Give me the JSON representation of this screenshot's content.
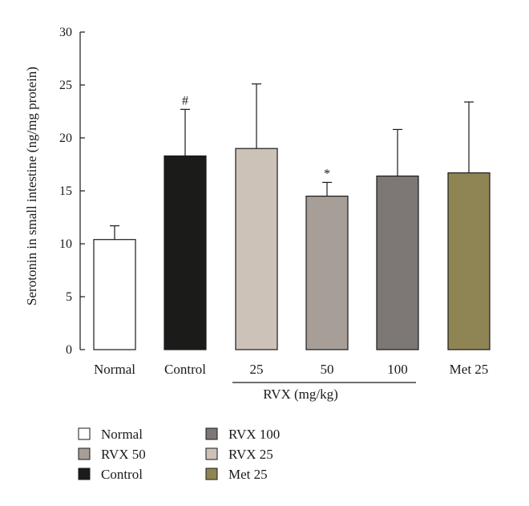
{
  "chart_data": {
    "type": "bar",
    "ylabel": "Serotonin in small intestine (ng/mg protein)",
    "ylim": [
      0,
      30
    ],
    "yticks": [
      0,
      5,
      10,
      15,
      20,
      25,
      30
    ],
    "grid": false,
    "group_label": "RVX (mg/kg)",
    "bars": [
      {
        "label": "Normal",
        "value": 10.4,
        "error": 1.3,
        "color": "#ffffff",
        "mark": ""
      },
      {
        "label": "Control",
        "value": 18.3,
        "error": 4.4,
        "color": "#1b1b19",
        "mark": "#"
      },
      {
        "label": "25",
        "value": 19.0,
        "error": 6.1,
        "color": "#cdc2b8",
        "mark": ""
      },
      {
        "label": "50",
        "value": 14.5,
        "error": 1.3,
        "color": "#a79f97",
        "mark": "*"
      },
      {
        "label": "100",
        "value": 16.4,
        "error": 4.4,
        "color": "#7d7775",
        "mark": ""
      },
      {
        "label": "Met 25",
        "value": 16.7,
        "error": 6.7,
        "color": "#8f8554",
        "mark": ""
      }
    ],
    "legend": {
      "placement": "bottom",
      "columns": [
        [
          {
            "label": "Normal",
            "color": "#ffffff"
          },
          {
            "label": "RVX 50",
            "color": "#a79f97"
          },
          {
            "label": "Control",
            "color": "#1b1b19"
          }
        ],
        [
          {
            "label": "RVX 100",
            "color": "#7d7775"
          },
          {
            "label": "RVX 25",
            "color": "#cdc2b8"
          },
          {
            "label": "Met 25",
            "color": "#8f8554"
          }
        ]
      ]
    }
  }
}
